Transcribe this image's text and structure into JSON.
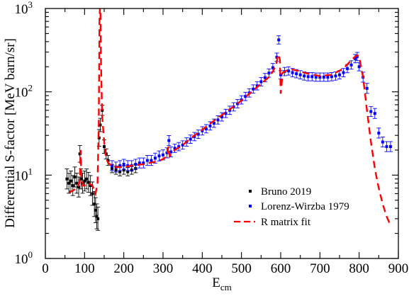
{
  "chart_data": {
    "type": "scatter",
    "title": "",
    "xlabel": "E",
    "xlabel_sub": "cm",
    "ylabel": "Differential S-factor [MeV barn/sr]",
    "xlim": [
      0,
      900
    ],
    "ylim": [
      1,
      1000
    ],
    "yscale": "log",
    "grid": false,
    "legend_position": "lower-right",
    "x_ticks": [
      0,
      100,
      200,
      300,
      400,
      500,
      600,
      700,
      800,
      900
    ],
    "x_tick_labels": [
      "0",
      "100",
      "200",
      "300",
      "400",
      "500",
      "600",
      "700",
      "800",
      "900"
    ],
    "y_ticks": [
      1,
      10,
      100,
      1000
    ],
    "y_tick_labels": [
      {
        "base": "10",
        "exp": "0"
      },
      {
        "base": "10",
        "exp": "1"
      },
      {
        "base": "10",
        "exp": "2"
      },
      {
        "base": "10",
        "exp": "3"
      }
    ],
    "series": [
      {
        "name": "Bruno 2019",
        "kind": "points",
        "color": "#000000",
        "x": [
          55,
          60,
          65,
          70,
          75,
          80,
          85,
          88,
          91,
          95,
          100,
          105,
          110,
          115,
          120,
          125,
          128,
          131,
          134,
          137,
          140,
          145,
          150,
          155,
          160,
          170,
          180,
          190,
          200,
          210,
          220,
          230
        ],
        "y": [
          9.0,
          8.0,
          8.5,
          7.5,
          9.5,
          8.0,
          7.2,
          18,
          9.0,
          8.0,
          8.5,
          9.0,
          8.2,
          7.5,
          6.0,
          4.5,
          3.8,
          3.2,
          3.0,
          28,
          40,
          60,
          22,
          18,
          15,
          12,
          11.5,
          11,
          11.5,
          11,
          11.5,
          12
        ],
        "err": [
          0.12,
          0.12,
          0.12,
          0.12,
          0.12,
          0.12,
          0.12,
          0.1,
          0.12,
          0.12,
          0.12,
          0.12,
          0.12,
          0.12,
          0.14,
          0.15,
          0.15,
          0.15,
          0.14,
          0.1,
          0.08,
          0.06,
          0.08,
          0.06,
          0.06,
          0.05,
          0.05,
          0.05,
          0.05,
          0.05,
          0.05,
          0.05
        ]
      },
      {
        "name": "Lorenz-Wirzba 1979",
        "kind": "points",
        "color": "#0000ff",
        "x": [
          170,
          180,
          190,
          200,
          210,
          220,
          230,
          240,
          250,
          260,
          270,
          280,
          290,
          300,
          310,
          315,
          320,
          330,
          340,
          350,
          360,
          370,
          380,
          390,
          400,
          410,
          420,
          430,
          440,
          450,
          460,
          470,
          480,
          490,
          500,
          510,
          520,
          530,
          540,
          550,
          560,
          570,
          580,
          590,
          595,
          600,
          610,
          620,
          630,
          640,
          650,
          660,
          670,
          680,
          690,
          700,
          710,
          720,
          730,
          740,
          750,
          760,
          770,
          780,
          790,
          795,
          800,
          810,
          820,
          830,
          840,
          850,
          860,
          870,
          880
        ],
        "y": [
          13,
          12.5,
          13,
          13.5,
          13,
          13,
          13.5,
          14,
          14,
          15,
          15,
          16,
          17,
          17.5,
          18.5,
          26,
          19,
          21,
          22,
          23,
          25,
          27,
          29,
          31,
          34,
          36,
          39,
          42,
          46,
          50,
          55,
          60,
          66,
          72,
          80,
          88,
          97,
          108,
          118,
          132,
          148,
          168,
          195,
          260,
          420,
          160,
          175,
          178,
          170,
          165,
          160,
          155,
          152,
          152,
          150,
          150,
          150,
          150,
          152,
          155,
          160,
          170,
          190,
          210,
          250,
          265,
          200,
          150,
          110,
          58,
          55,
          32,
          25,
          22,
          22
        ],
        "err": [
          0.06,
          0.06,
          0.06,
          0.06,
          0.06,
          0.06,
          0.06,
          0.06,
          0.06,
          0.06,
          0.06,
          0.06,
          0.06,
          0.06,
          0.06,
          0.06,
          0.06,
          0.05,
          0.05,
          0.05,
          0.05,
          0.05,
          0.05,
          0.05,
          0.05,
          0.05,
          0.05,
          0.05,
          0.05,
          0.05,
          0.05,
          0.05,
          0.05,
          0.05,
          0.05,
          0.05,
          0.05,
          0.05,
          0.05,
          0.05,
          0.05,
          0.05,
          0.05,
          0.05,
          0.05,
          0.05,
          0.05,
          0.05,
          0.05,
          0.05,
          0.05,
          0.05,
          0.05,
          0.05,
          0.05,
          0.05,
          0.05,
          0.05,
          0.05,
          0.05,
          0.05,
          0.05,
          0.05,
          0.05,
          0.05,
          0.05,
          0.05,
          0.06,
          0.06,
          0.06,
          0.06,
          0.06,
          0.06,
          0.06,
          0.06
        ]
      },
      {
        "name": "R matrix fit",
        "kind": "line",
        "style": "dashed",
        "color": "#ff0000",
        "x": [
          60,
          70,
          80,
          85,
          88,
          90,
          92,
          95,
          100,
          110,
          120,
          128,
          133,
          136,
          138,
          140,
          142,
          145,
          150,
          155,
          160,
          170,
          180,
          200,
          220,
          250,
          280,
          300,
          310,
          314,
          317,
          320,
          330,
          350,
          380,
          400,
          430,
          460,
          490,
          520,
          550,
          570,
          580,
          588,
          592,
          595,
          598,
          600,
          605,
          615,
          630,
          650,
          670,
          700,
          730,
          760,
          780,
          790,
          795,
          800,
          805,
          810,
          820,
          830,
          840,
          850,
          860,
          870,
          880
        ],
        "y": [
          6.2,
          6.5,
          7.0,
          7.5,
          9.0,
          20,
          9.0,
          7.5,
          7.5,
          8.0,
          7.5,
          6.0,
          8.0,
          40,
          800,
          1200,
          200,
          50,
          25,
          16,
          14,
          13,
          12.5,
          12.5,
          13,
          13.5,
          14.5,
          15.5,
          17,
          22,
          17,
          18,
          20,
          23,
          30,
          35,
          45,
          57,
          72,
          95,
          125,
          150,
          175,
          210,
          260,
          280,
          240,
          95,
          170,
          180,
          185,
          175,
          165,
          155,
          160,
          190,
          240,
          265,
          275,
          265,
          200,
          150,
          60,
          25,
          12,
          7,
          4.5,
          3.2,
          2.5
        ]
      }
    ]
  }
}
